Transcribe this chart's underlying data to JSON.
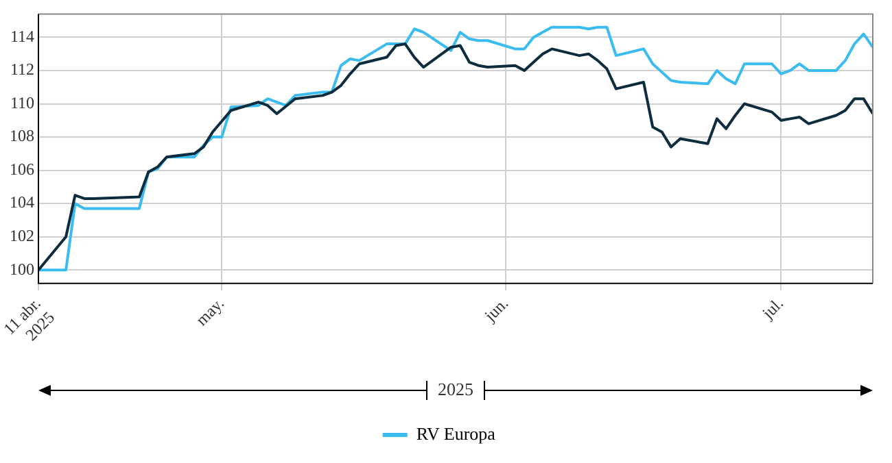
{
  "chart_data": {
    "type": "line",
    "annotations": [
      "2025"
    ],
    "xlim": [
      "2025-04-11",
      "2025-07-11"
    ],
    "xticks": [
      {
        "value": "2025-04-11",
        "label": "11 abr.\n2025"
      },
      {
        "value": "2025-05-01",
        "label": "may."
      },
      {
        "value": "2025-06-01",
        "label": "jun."
      },
      {
        "value": "2025-07-01",
        "label": "jul."
      }
    ],
    "ylim": [
      99.2,
      115.4
    ],
    "yticks": [
      100,
      102,
      104,
      106,
      108,
      110,
      112,
      114
    ],
    "grid": true,
    "legend": "bottom",
    "marker": "none",
    "line_style": "solid",
    "series": [
      {
        "color": "#0d2d3f",
        "x": [
          "2025-04-11",
          "2025-04-14",
          "2025-04-15",
          "2025-04-16",
          "2025-04-17",
          "2025-04-22",
          "2025-04-23",
          "2025-04-24",
          "2025-04-25",
          "2025-04-28",
          "2025-04-29",
          "2025-04-30",
          "2025-05-02",
          "2025-05-05",
          "2025-05-06",
          "2025-05-07",
          "2025-05-09",
          "2025-05-12",
          "2025-05-13",
          "2025-05-14",
          "2025-05-15",
          "2025-05-16",
          "2025-05-19",
          "2025-05-20",
          "2025-05-21",
          "2025-05-22",
          "2025-05-23",
          "2025-05-26",
          "2025-05-27",
          "2025-05-28",
          "2025-05-29",
          "2025-05-30",
          "2025-06-02",
          "2025-06-03",
          "2025-06-04",
          "2025-06-05",
          "2025-06-06",
          "2025-06-09",
          "2025-06-10",
          "2025-06-11",
          "2025-06-12",
          "2025-06-13",
          "2025-06-16",
          "2025-06-17",
          "2025-06-18",
          "2025-06-19",
          "2025-06-20",
          "2025-06-23",
          "2025-06-24",
          "2025-06-25",
          "2025-06-26",
          "2025-06-27",
          "2025-06-30",
          "2025-07-01",
          "2025-07-02",
          "2025-07-03",
          "2025-07-04",
          "2025-07-07",
          "2025-07-08",
          "2025-07-09",
          "2025-07-10",
          "2025-07-11"
        ],
        "values": [
          100,
          102.0,
          104.5,
          104.3,
          104.3,
          104.4,
          105.9,
          106.2,
          106.8,
          107.0,
          107.4,
          108.3,
          109.6,
          110.1,
          109.9,
          109.4,
          110.3,
          110.5,
          110.7,
          111.1,
          111.8,
          112.4,
          112.8,
          113.5,
          113.6,
          112.8,
          112.2,
          113.4,
          113.5,
          112.5,
          112.3,
          112.2,
          112.3,
          112.0,
          112.5,
          113.0,
          113.3,
          112.9,
          113.0,
          112.6,
          112.1,
          110.9,
          111.3,
          108.6,
          108.3,
          107.4,
          107.9,
          107.6,
          109.1,
          108.5,
          109.3,
          110.0,
          109.5,
          109.0,
          109.1,
          109.2,
          108.8,
          109.3,
          109.6,
          110.3,
          110.3,
          109.4
        ]
      },
      {
        "name": "RV Europa",
        "color": "#3bbcf0",
        "x": [
          "2025-04-11",
          "2025-04-14",
          "2025-04-15",
          "2025-04-16",
          "2025-04-17",
          "2025-04-22",
          "2025-04-23",
          "2025-04-24",
          "2025-04-25",
          "2025-04-28",
          "2025-04-29",
          "2025-04-30",
          "2025-05-01",
          "2025-05-02",
          "2025-05-05",
          "2025-05-06",
          "2025-05-07",
          "2025-05-08",
          "2025-05-09",
          "2025-05-12",
          "2025-05-13",
          "2025-05-14",
          "2025-05-15",
          "2025-05-16",
          "2025-05-19",
          "2025-05-20",
          "2025-05-21",
          "2025-05-22",
          "2025-05-23",
          "2025-05-26",
          "2025-05-27",
          "2025-05-28",
          "2025-05-29",
          "2025-05-30",
          "2025-06-02",
          "2025-06-03",
          "2025-06-04",
          "2025-06-05",
          "2025-06-06",
          "2025-06-09",
          "2025-06-10",
          "2025-06-11",
          "2025-06-12",
          "2025-06-13",
          "2025-06-16",
          "2025-06-17",
          "2025-06-18",
          "2025-06-19",
          "2025-06-20",
          "2025-06-23",
          "2025-06-24",
          "2025-06-25",
          "2025-06-26",
          "2025-06-27",
          "2025-06-30",
          "2025-07-01",
          "2025-07-02",
          "2025-07-03",
          "2025-07-04",
          "2025-07-07",
          "2025-07-08",
          "2025-07-09",
          "2025-07-10",
          "2025-07-11"
        ],
        "values": [
          100,
          100.0,
          104.0,
          103.7,
          103.7,
          103.7,
          105.9,
          106.1,
          106.8,
          106.8,
          107.5,
          108.0,
          108.0,
          109.8,
          109.9,
          110.3,
          110.1,
          109.9,
          110.5,
          110.7,
          110.7,
          112.3,
          112.7,
          112.6,
          113.6,
          113.6,
          113.6,
          114.5,
          114.3,
          113.2,
          114.3,
          113.9,
          113.8,
          113.8,
          113.3,
          113.3,
          114.0,
          114.3,
          114.6,
          114.6,
          114.5,
          114.6,
          114.6,
          112.9,
          113.3,
          112.4,
          111.9,
          111.4,
          111.3,
          111.2,
          112.0,
          111.5,
          111.2,
          112.4,
          112.4,
          111.8,
          112.0,
          112.4,
          112.0,
          112.0,
          112.6,
          113.6,
          114.2,
          113.4
        ]
      }
    ]
  }
}
